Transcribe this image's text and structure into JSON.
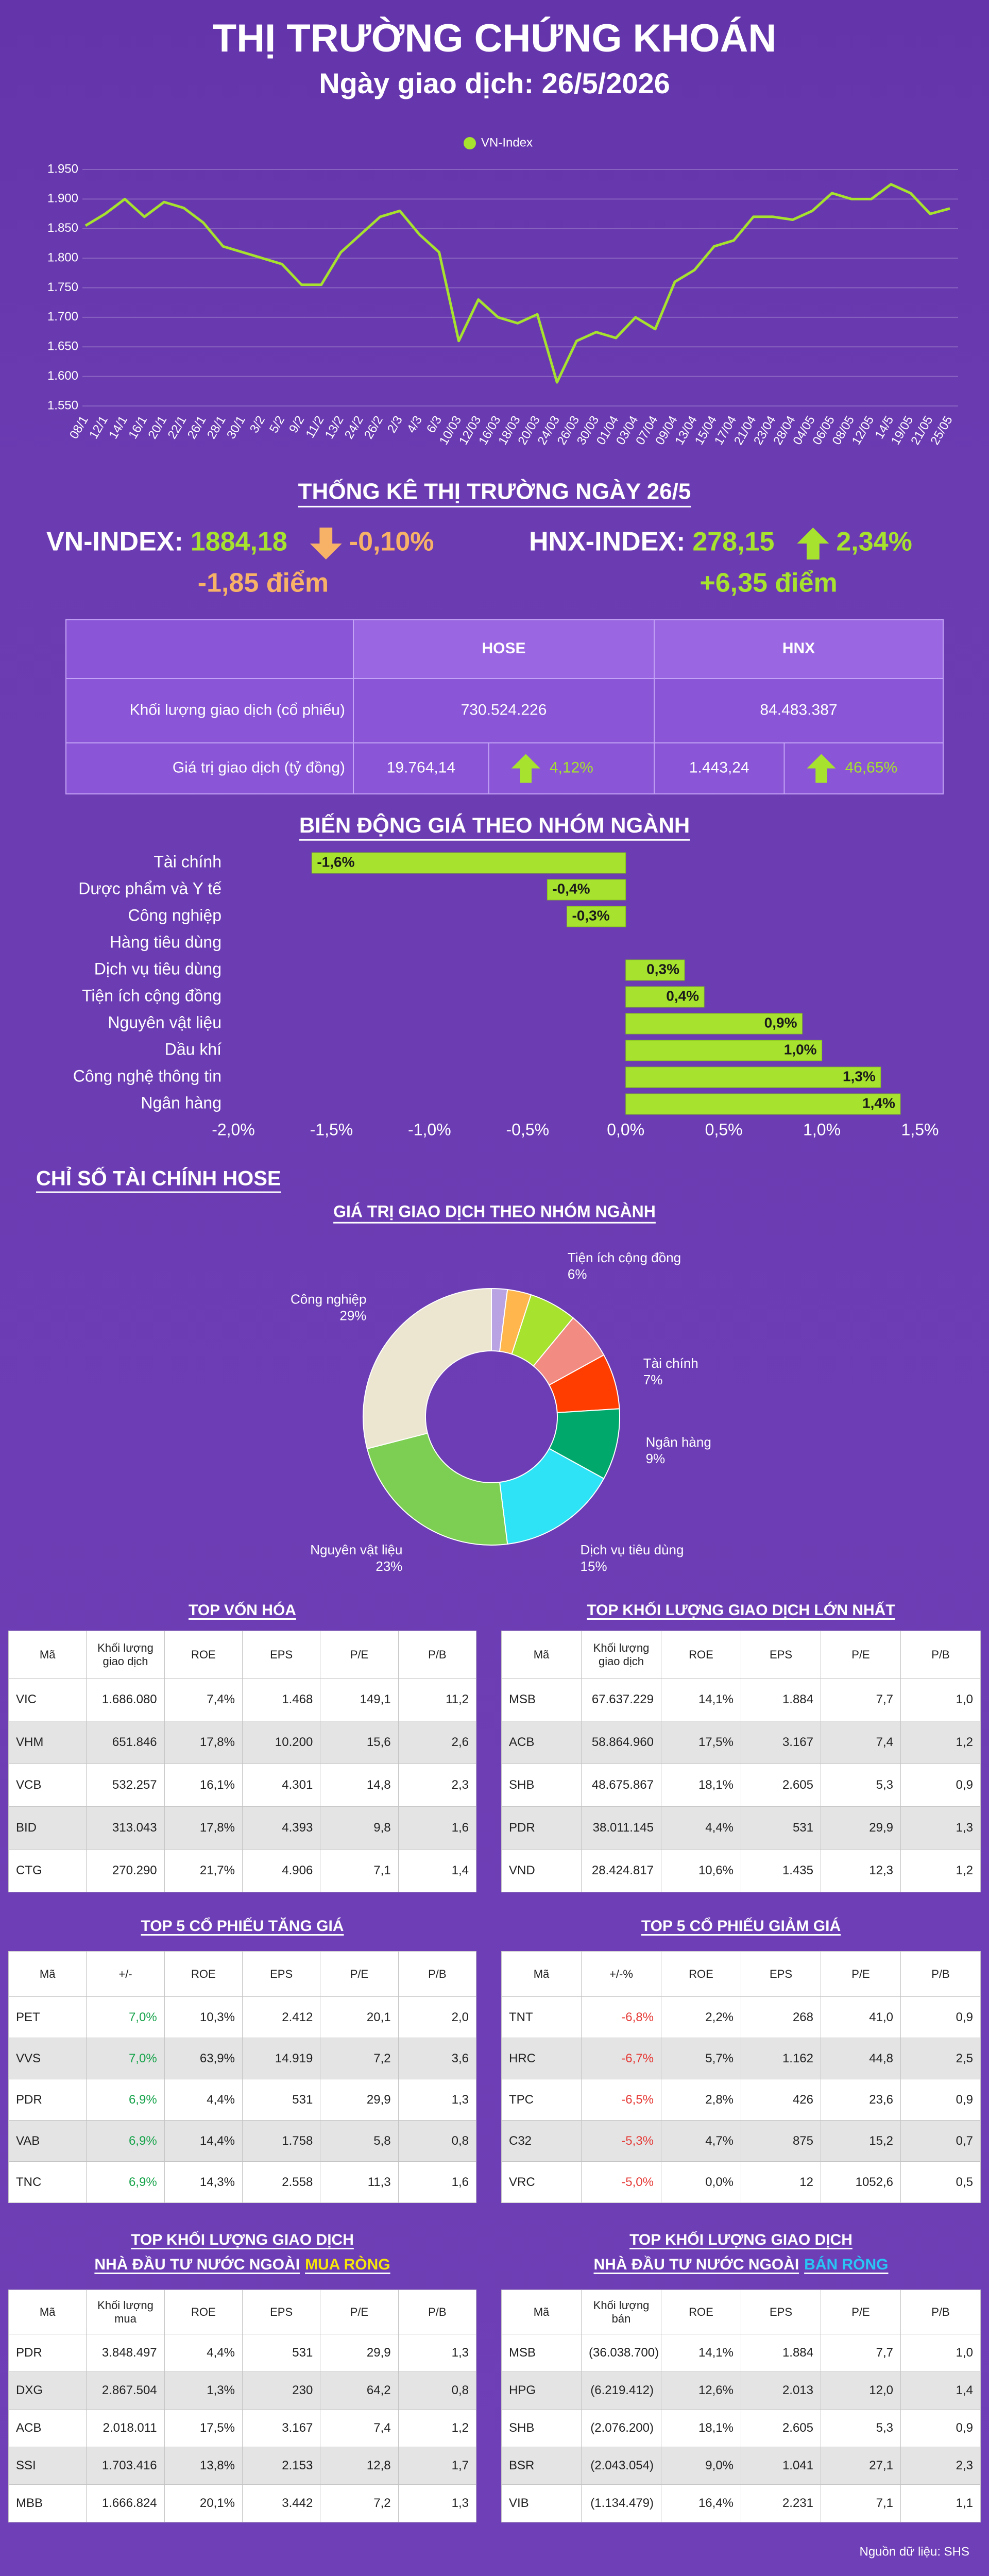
{
  "header": {
    "title": "THỊ TRƯỜNG CHỨNG KHOÁN",
    "subtitle": "Ngày giao dịch: 26/5/2026"
  },
  "chart_data": [
    {
      "type": "line",
      "x": [
        "08/1",
        "12/1",
        "14/1",
        "16/1",
        "20/1",
        "22/1",
        "26/1",
        "28/1",
        "30/1",
        "3/2",
        "5/2",
        "9/2",
        "11/2",
        "13/2",
        "24/2",
        "26/2",
        "2/3",
        "4/3",
        "6/3",
        "10/03",
        "12/03",
        "16/03",
        "18/03",
        "20/03",
        "24/03",
        "26/03",
        "30/03",
        "01/04",
        "03/04",
        "07/04",
        "09/04",
        "13/04",
        "15/04",
        "17/04",
        "21/04",
        "23/04",
        "28/04",
        "04/05",
        "06/05",
        "08/05",
        "12/05",
        "14/5",
        "19/05",
        "21/05",
        "25/05"
      ],
      "series": [
        {
          "name": "VN-Index",
          "color": "#a6e22e",
          "values": [
            1855,
            1875,
            1900,
            1870,
            1895,
            1885,
            1860,
            1820,
            1810,
            1800,
            1790,
            1755,
            1755,
            1810,
            1840,
            1870,
            1880,
            1840,
            1810,
            1660,
            1730,
            1700,
            1690,
            1705,
            1590,
            1660,
            1675,
            1665,
            1700,
            1680,
            1760,
            1780,
            1820,
            1830,
            1870,
            1870,
            1865,
            1880,
            1910,
            1900,
            1900,
            1925,
            1910,
            1875,
            1884
          ]
        }
      ],
      "ylim": [
        1550,
        1950
      ],
      "yticks": [
        {
          "value": 1550,
          "label": "1.550"
        },
        {
          "value": 1600,
          "label": "1.600"
        },
        {
          "value": 1650,
          "label": "1.650"
        },
        {
          "value": 1700,
          "label": "1.700"
        },
        {
          "value": 1750,
          "label": "1.750"
        },
        {
          "value": 1800,
          "label": "1.800"
        },
        {
          "value": 1850,
          "label": "1.850"
        },
        {
          "value": 1900,
          "label": "1.900"
        },
        {
          "value": 1950,
          "label": "1.950"
        }
      ],
      "grid": true,
      "legend": "top"
    },
    {
      "type": "bar",
      "orientation": "horizontal",
      "title": "BIẾN ĐỘNG GIÁ THEO NHÓM NGÀNH",
      "categories": [
        "Tài chính",
        "Dược phẩm và Y tế",
        "Công nghiệp",
        "Hàng tiêu dùng",
        "Dịch vụ tiêu dùng",
        "Tiện ích cộng đồng",
        "Nguyên vật liệu",
        "Dầu khí",
        "Công nghệ thông tin",
        "Ngân hàng"
      ],
      "values": [
        -1.6,
        -0.4,
        -0.3,
        0,
        0.3,
        0.4,
        0.9,
        1.0,
        1.3,
        1.4
      ],
      "value_labels": [
        "-1,6%",
        "-0,4%",
        "-0,3%",
        null,
        "0,3%",
        "0,4%",
        "0,9%",
        "1,0%",
        "1,3%",
        "1,4%"
      ],
      "color": "#a6e22e",
      "xlim": [
        -2,
        1.5
      ],
      "xticks": [
        {
          "value": -2,
          "label": "-2,0%"
        },
        {
          "value": -1.5,
          "label": "-1,5%"
        },
        {
          "value": -1,
          "label": "-1,0%"
        },
        {
          "value": -0.5,
          "label": "-0,5%"
        },
        {
          "value": 0,
          "label": "0,0%"
        },
        {
          "value": 0.5,
          "label": "0,5%"
        },
        {
          "value": 1,
          "label": "1,0%"
        },
        {
          "value": 1.5,
          "label": "1,5%"
        }
      ]
    },
    {
      "type": "pie",
      "title": "GIÁ TRỊ GIAO DỊCH THEO NHÓM NGÀNH",
      "categories": [
        null,
        null,
        "Tiện ích cộng đồng",
        null,
        "Tài chính",
        "Ngân hàng",
        "Dịch vụ tiêu dùng",
        "Nguyên vật liệu",
        "Công nghiệp"
      ],
      "values": [
        2,
        3,
        6,
        6,
        7,
        9,
        15,
        23,
        29
      ],
      "value_labels": [
        null,
        null,
        "6%",
        null,
        "7%",
        "9%",
        "15%",
        "23%",
        "29%"
      ],
      "colors": [
        "#b9a3e3",
        "#ffb74d",
        "#a6e22e",
        "#f28b82",
        "#ff3d00",
        "#00a86b",
        "#2fe3f7",
        "#7ccf52",
        "#ece6d0"
      ]
    }
  ],
  "market_stats": {
    "title": "THỐNG KÊ THỊ TRƯỜNG NGÀY 26/5",
    "indices": [
      {
        "name": "VN-INDEX:",
        "value": "1884,18",
        "change_pct": "-0,10%",
        "change_pts": "-1,85 điểm",
        "direction": "down"
      },
      {
        "name": "HNX-INDEX:",
        "value": "278,15",
        "change_pct": "2,34%",
        "change_pts": "+6,35 điểm",
        "direction": "up"
      }
    ],
    "table": {
      "columns": [
        "HOSE",
        "HNX"
      ],
      "rows": [
        {
          "label": "Khối lượng giao dịch (cổ phiếu)",
          "hose": {
            "value": "730.524.226"
          },
          "hnx": {
            "value": "84.483.387"
          }
        },
        {
          "label": "Giá trị giao dịch (tỷ đồng)",
          "hose": {
            "value": "19.764,14",
            "change": "4,12%",
            "direction": "up"
          },
          "hnx": {
            "value": "1.443,24",
            "change": "46,65%",
            "direction": "up"
          }
        }
      ]
    }
  },
  "section_title": "CHỈ SỐ TÀI CHÍNH HOSE",
  "tables": [
    {
      "title": "TOP VỐN HÓA",
      "header": [
        "Mã",
        "Khối lượng giao dịch",
        "ROE",
        "EPS",
        "P/E",
        "P/B"
      ],
      "rows": [
        [
          "VIC",
          "1.686.080",
          "7,4%",
          "1.468",
          "149,1",
          "11,2"
        ],
        [
          "VHM",
          "651.846",
          "17,8%",
          "10.200",
          "15,6",
          "2,6"
        ],
        [
          "VCB",
          "532.257",
          "16,1%",
          "4.301",
          "14,8",
          "2,3"
        ],
        [
          "BID",
          "313.043",
          "17,8%",
          "4.393",
          "9,8",
          "1,6"
        ],
        [
          "CTG",
          "270.290",
          "21,7%",
          "4.906",
          "7,1",
          "1,4"
        ]
      ]
    },
    {
      "title": "TOP KHỐI LƯỢNG GIAO DỊCH LỚN NHẤT",
      "header": [
        "Mã",
        "Khối lượng giao dịch",
        "ROE",
        "EPS",
        "P/E",
        "P/B"
      ],
      "rows": [
        [
          "MSB",
          "67.637.229",
          "14,1%",
          "1.884",
          "7,7",
          "1,0"
        ],
        [
          "ACB",
          "58.864.960",
          "17,5%",
          "3.167",
          "7,4",
          "1,2"
        ],
        [
          "SHB",
          "48.675.867",
          "18,1%",
          "2.605",
          "5,3",
          "0,9"
        ],
        [
          "PDR",
          "38.011.145",
          "4,4%",
          "531",
          "29,9",
          "1,3"
        ],
        [
          "VND",
          "28.424.817",
          "10,6%",
          "1.435",
          "12,3",
          "1,2"
        ]
      ]
    },
    {
      "title": "TOP 5 CỔ PHIẾU TĂNG GIÁ",
      "header": [
        "Mã",
        "+/-",
        "ROE",
        "EPS",
        "P/E",
        "P/B"
      ],
      "change_color": "#16a34a",
      "rows": [
        [
          "PET",
          "7,0%",
          "10,3%",
          "2.412",
          "20,1",
          "2,0"
        ],
        [
          "VVS",
          "7,0%",
          "63,9%",
          "14.919",
          "7,2",
          "3,6"
        ],
        [
          "PDR",
          "6,9%",
          "4,4%",
          "531",
          "29,9",
          "1,3"
        ],
        [
          "VAB",
          "6,9%",
          "14,4%",
          "1.758",
          "5,8",
          "0,8"
        ],
        [
          "TNC",
          "6,9%",
          "14,3%",
          "2.558",
          "11,3",
          "1,6"
        ]
      ]
    },
    {
      "title": "TOP 5 CỔ PHIẾU GIẢM GIÁ",
      "header": [
        "Mã",
        "+/-%",
        "ROE",
        "EPS",
        "P/E",
        "P/B"
      ],
      "change_color": "#e53935",
      "rows": [
        [
          "TNT",
          "-6,8%",
          "2,2%",
          "268",
          "41,0",
          "0,9"
        ],
        [
          "HRC",
          "-6,7%",
          "5,7%",
          "1.162",
          "44,8",
          "2,5"
        ],
        [
          "TPC",
          "-6,5%",
          "2,8%",
          "426",
          "23,6",
          "0,9"
        ],
        [
          "C32",
          "-5,3%",
          "4,7%",
          "875",
          "15,2",
          "0,7"
        ],
        [
          "VRC",
          "-5,0%",
          "0,0%",
          "12",
          "1052,6",
          "0,5"
        ]
      ]
    },
    {
      "title": "TOP KHỐI LƯỢNG GIAO DỊCH",
      "subtitle": "NHÀ ĐẦU TƯ NƯỚC NGOÀI",
      "highlight": "MUA RÒNG",
      "highlight_color": "#f5e50a",
      "header": [
        "Mã",
        "Khối lượng mua",
        "ROE",
        "EPS",
        "P/E",
        "P/B"
      ],
      "rows": [
        [
          "PDR",
          "3.848.497",
          "4,4%",
          "531",
          "29,9",
          "1,3"
        ],
        [
          "DXG",
          "2.867.504",
          "1,3%",
          "230",
          "64,2",
          "0,8"
        ],
        [
          "ACB",
          "2.018.011",
          "17,5%",
          "3.167",
          "7,4",
          "1,2"
        ],
        [
          "SSI",
          "1.703.416",
          "13,8%",
          "2.153",
          "12,8",
          "1,7"
        ],
        [
          "MBB",
          "1.666.824",
          "20,1%",
          "3.442",
          "7,2",
          "1,3"
        ]
      ]
    },
    {
      "title": "TOP KHỐI LƯỢNG GIAO DỊCH",
      "subtitle": "NHÀ ĐẦU TƯ NƯỚC NGOÀI",
      "highlight": "BÁN RÒNG",
      "highlight_color": "#29c6f5",
      "header": [
        "Mã",
        "Khối lượng bán",
        "ROE",
        "EPS",
        "P/E",
        "P/B"
      ],
      "rows": [
        [
          "MSB",
          "(36.038.700)",
          "14,1%",
          "1.884",
          "7,7",
          "1,0"
        ],
        [
          "HPG",
          "(6.219.412)",
          "12,6%",
          "2.013",
          "12,0",
          "1,4"
        ],
        [
          "SHB",
          "(2.076.200)",
          "18,1%",
          "2.605",
          "5,3",
          "0,9"
        ],
        [
          "BSR",
          "(2.043.054)",
          "9,0%",
          "1.041",
          "27,1",
          "2,3"
        ],
        [
          "VIB",
          "(1.134.479)",
          "16,4%",
          "2.231",
          "7,1",
          "1,1"
        ]
      ]
    }
  ],
  "source": "Nguồn dữ liệu: SHS"
}
